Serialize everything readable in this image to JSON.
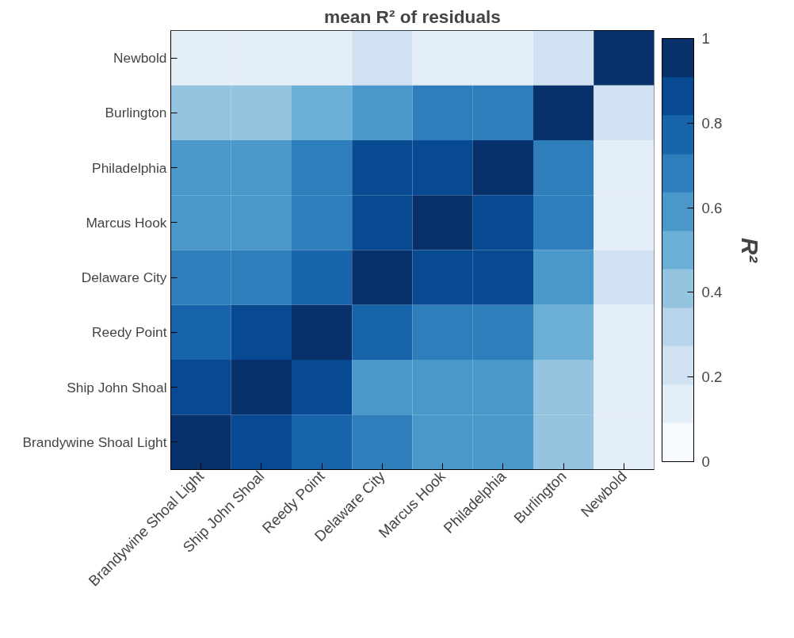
{
  "chart_data": {
    "type": "heatmap",
    "title": "mean R² of residuals",
    "clabel": "R²",
    "categories": [
      "Brandywine Shoal Light",
      "Ship John Shoal",
      "Reedy Point",
      "Delaware City",
      "Marcus Hook",
      "Philadelphia",
      "Burlington",
      "Newbold"
    ],
    "y_categories": [
      "Newbold",
      "Burlington",
      "Philadelphia",
      "Marcus Hook",
      "Delaware City",
      "Reedy Point",
      "Ship John Shoal",
      "Brandywine Shoal Light"
    ],
    "cells": [
      [
        0.14,
        0.14,
        0.14,
        0.23,
        0.14,
        0.14,
        0.23,
        0.95
      ],
      [
        0.41,
        0.41,
        0.5,
        0.59,
        0.68,
        0.68,
        0.95,
        0.23
      ],
      [
        0.59,
        0.59,
        0.68,
        0.86,
        0.86,
        0.95,
        0.68,
        0.14
      ],
      [
        0.59,
        0.59,
        0.68,
        0.86,
        0.95,
        0.86,
        0.68,
        0.14
      ],
      [
        0.68,
        0.68,
        0.77,
        0.95,
        0.86,
        0.86,
        0.59,
        0.23
      ],
      [
        0.77,
        0.86,
        0.95,
        0.77,
        0.68,
        0.68,
        0.5,
        0.14
      ],
      [
        0.86,
        0.95,
        0.86,
        0.59,
        0.59,
        0.59,
        0.41,
        0.14
      ],
      [
        0.95,
        0.86,
        0.77,
        0.68,
        0.59,
        0.59,
        0.41,
        0.14
      ]
    ],
    "colors": [
      "#f7fbff",
      "#e3eef9",
      "#d0e1f2",
      "#b7d4ea",
      "#94c4df",
      "#6baed6",
      "#4a98c9",
      "#2e7ebc",
      "#1764ab",
      "#084a91",
      "#08306b"
    ],
    "clim": [
      0,
      1
    ],
    "cticks": [
      0,
      0.2,
      0.4,
      0.6,
      0.8,
      1
    ],
    "grid": false
  }
}
